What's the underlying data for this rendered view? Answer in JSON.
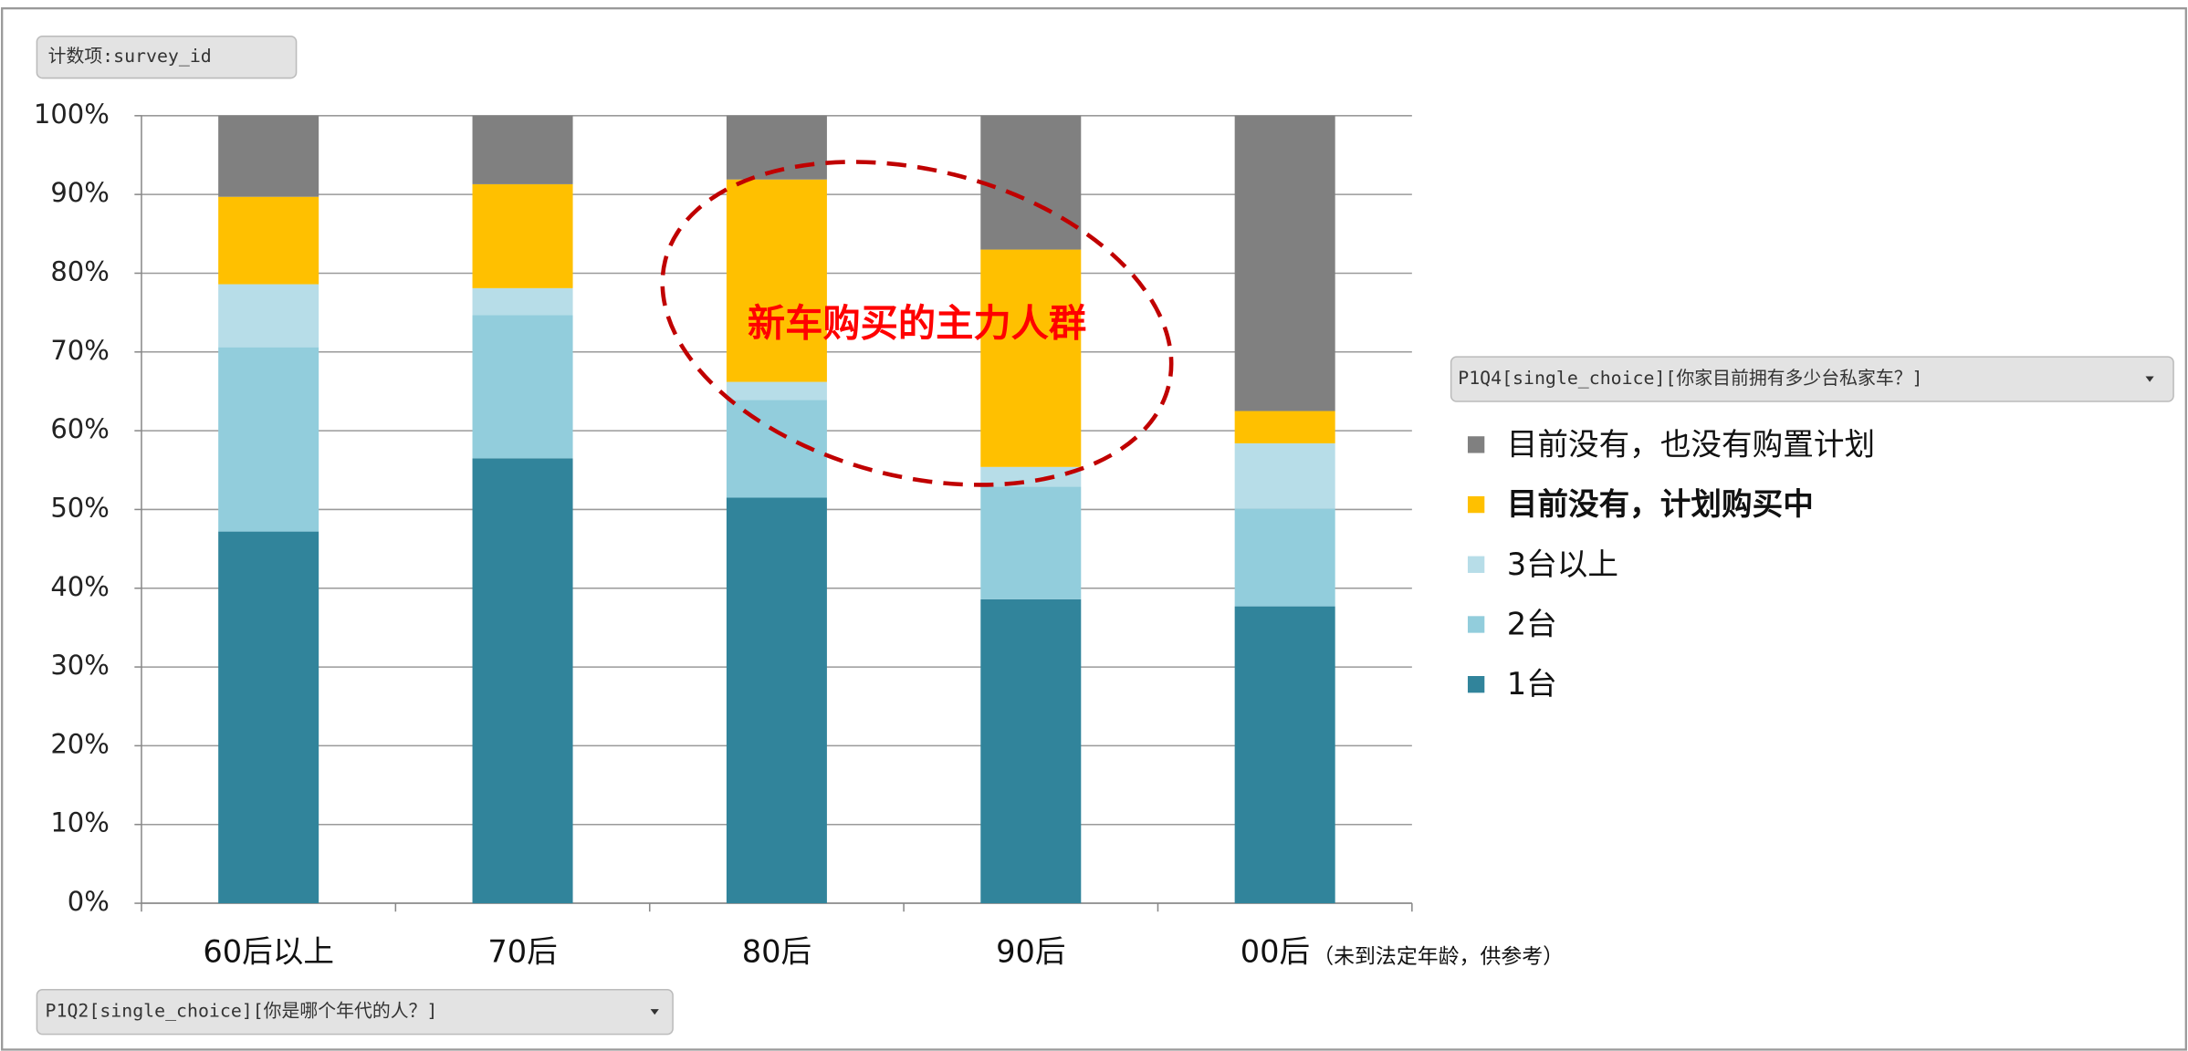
{
  "value_field": "计数项:survey_id",
  "legend_field": "P1Q4[single_choice][你家目前拥有多少台私家车？]",
  "axis_field": "P1Q2[single_choice][你是哪个年代的人？]",
  "chart_data": {
    "type": "stacked_bar",
    "categories": [
      "60后以上",
      "70后",
      "80后",
      "90后",
      "00后"
    ],
    "category_note": "（未到法定年龄，供参考）",
    "annotation": "新车购买的主力人群",
    "series": [
      {
        "name": "1台",
        "color": "#31849b",
        "values": [
          47.2,
          56.5,
          51.5,
          38.6,
          37.7
        ]
      },
      {
        "name": "2台",
        "color": "#92cddc",
        "values": [
          23.4,
          18.2,
          12.4,
          14.3,
          12.4
        ]
      },
      {
        "name": "3台以上",
        "color": "#b7dde8",
        "values": [
          8.0,
          3.4,
          2.3,
          2.5,
          8.3
        ]
      },
      {
        "name": "目前没有，计划购买中",
        "color": "#ffc000",
        "values": [
          11.1,
          13.2,
          25.7,
          27.6,
          4.1
        ]
      },
      {
        "name": "目前没有，也没有购置计划",
        "color": "#808080",
        "values": [
          10.3,
          8.7,
          8.1,
          17.0,
          37.5
        ]
      }
    ],
    "highlight_series": 3,
    "ylim": [
      0,
      100
    ],
    "yticks": [
      {
        "value": 0,
        "label": "0%"
      },
      {
        "value": 10,
        "label": "10%"
      },
      {
        "value": 20,
        "label": "20%"
      },
      {
        "value": 30,
        "label": "30%"
      },
      {
        "value": 40,
        "label": "40%"
      },
      {
        "value": 50,
        "label": "50%"
      },
      {
        "value": 60,
        "label": "60%"
      },
      {
        "value": 70,
        "label": "70%"
      },
      {
        "value": 80,
        "label": "80%"
      },
      {
        "value": 90,
        "label": "90%"
      },
      {
        "value": 100,
        "label": "100%"
      }
    ],
    "grid": true
  }
}
